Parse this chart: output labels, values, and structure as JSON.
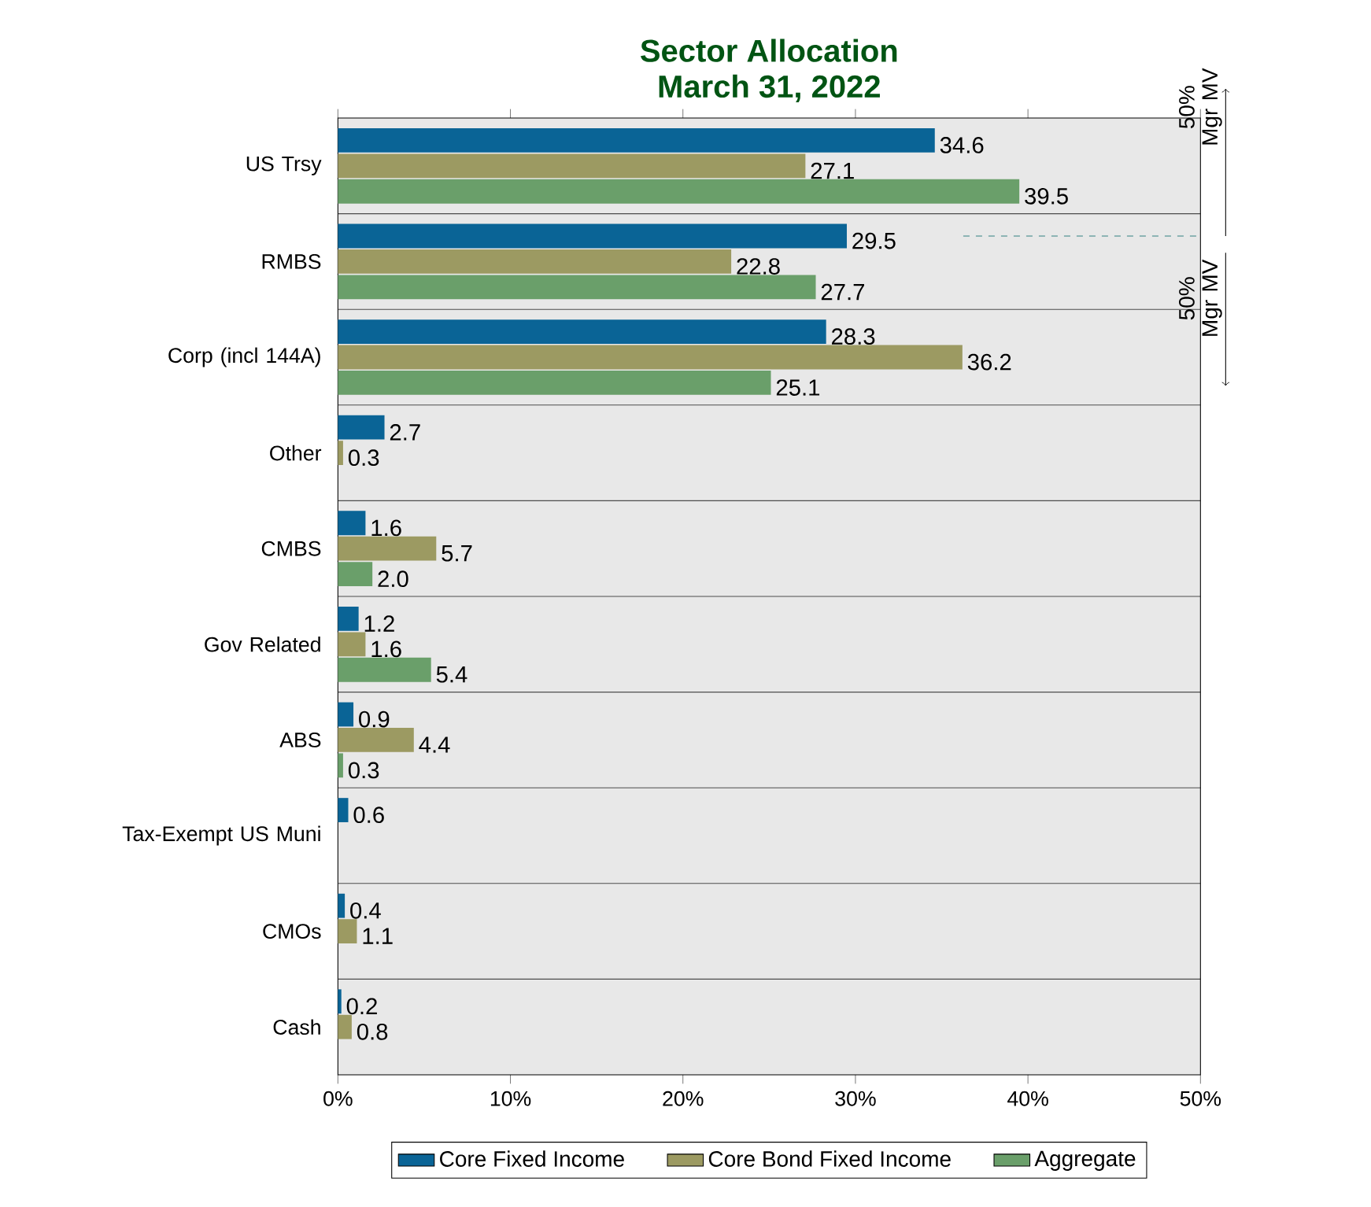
{
  "chart_data": {
    "type": "bar",
    "orientation": "horizontal",
    "title": "Sector Allocation",
    "subtitle": "March 31, 2022",
    "categories": [
      "US Trsy",
      "RMBS",
      "Corp (incl 144A)",
      "Other",
      "CMBS",
      "Gov Related",
      "ABS",
      "Tax-Exempt US Muni",
      "CMOs",
      "Cash"
    ],
    "series": [
      {
        "name": "Core Fixed Income",
        "color": "#0a6496",
        "values": [
          34.6,
          29.5,
          28.3,
          2.7,
          1.6,
          1.2,
          0.9,
          0.6,
          0.4,
          0.2
        ],
        "value_labels": [
          "34.6",
          "29.5",
          "28.3",
          "2.7",
          "1.6",
          "1.2",
          "0.9",
          "0.6",
          "0.4",
          "0.2"
        ]
      },
      {
        "name": "Core Bond Fixed Income",
        "color": "#9c9a62",
        "values": [
          27.1,
          22.8,
          36.2,
          0.3,
          5.7,
          1.6,
          4.4,
          null,
          1.1,
          0.8
        ],
        "value_labels": [
          "27.1",
          "22.8",
          "36.2",
          "0.3",
          "5.7",
          "1.6",
          "4.4",
          null,
          "1.1",
          "0.8"
        ]
      },
      {
        "name": "Aggregate",
        "color": "#6a9f6a",
        "values": [
          39.5,
          27.7,
          25.1,
          null,
          2.0,
          5.4,
          0.3,
          null,
          null,
          null
        ],
        "value_labels": [
          "39.5",
          "27.7",
          "25.1",
          null,
          "2.0",
          "5.4",
          "0.3",
          null,
          null,
          null
        ]
      }
    ],
    "xlim": [
      0,
      50
    ],
    "xticks": [
      {
        "value": 0,
        "label": "0%"
      },
      {
        "value": 10,
        "label": "10%"
      },
      {
        "value": 20,
        "label": "20%"
      },
      {
        "value": 30,
        "label": "30%"
      },
      {
        "value": 40,
        "label": "40%"
      },
      {
        "value": 50,
        "label": "50%"
      }
    ],
    "annotations": [
      "50% Mgr MV",
      "50% Mgr MV"
    ],
    "grid": "y",
    "legend": "bottom"
  }
}
